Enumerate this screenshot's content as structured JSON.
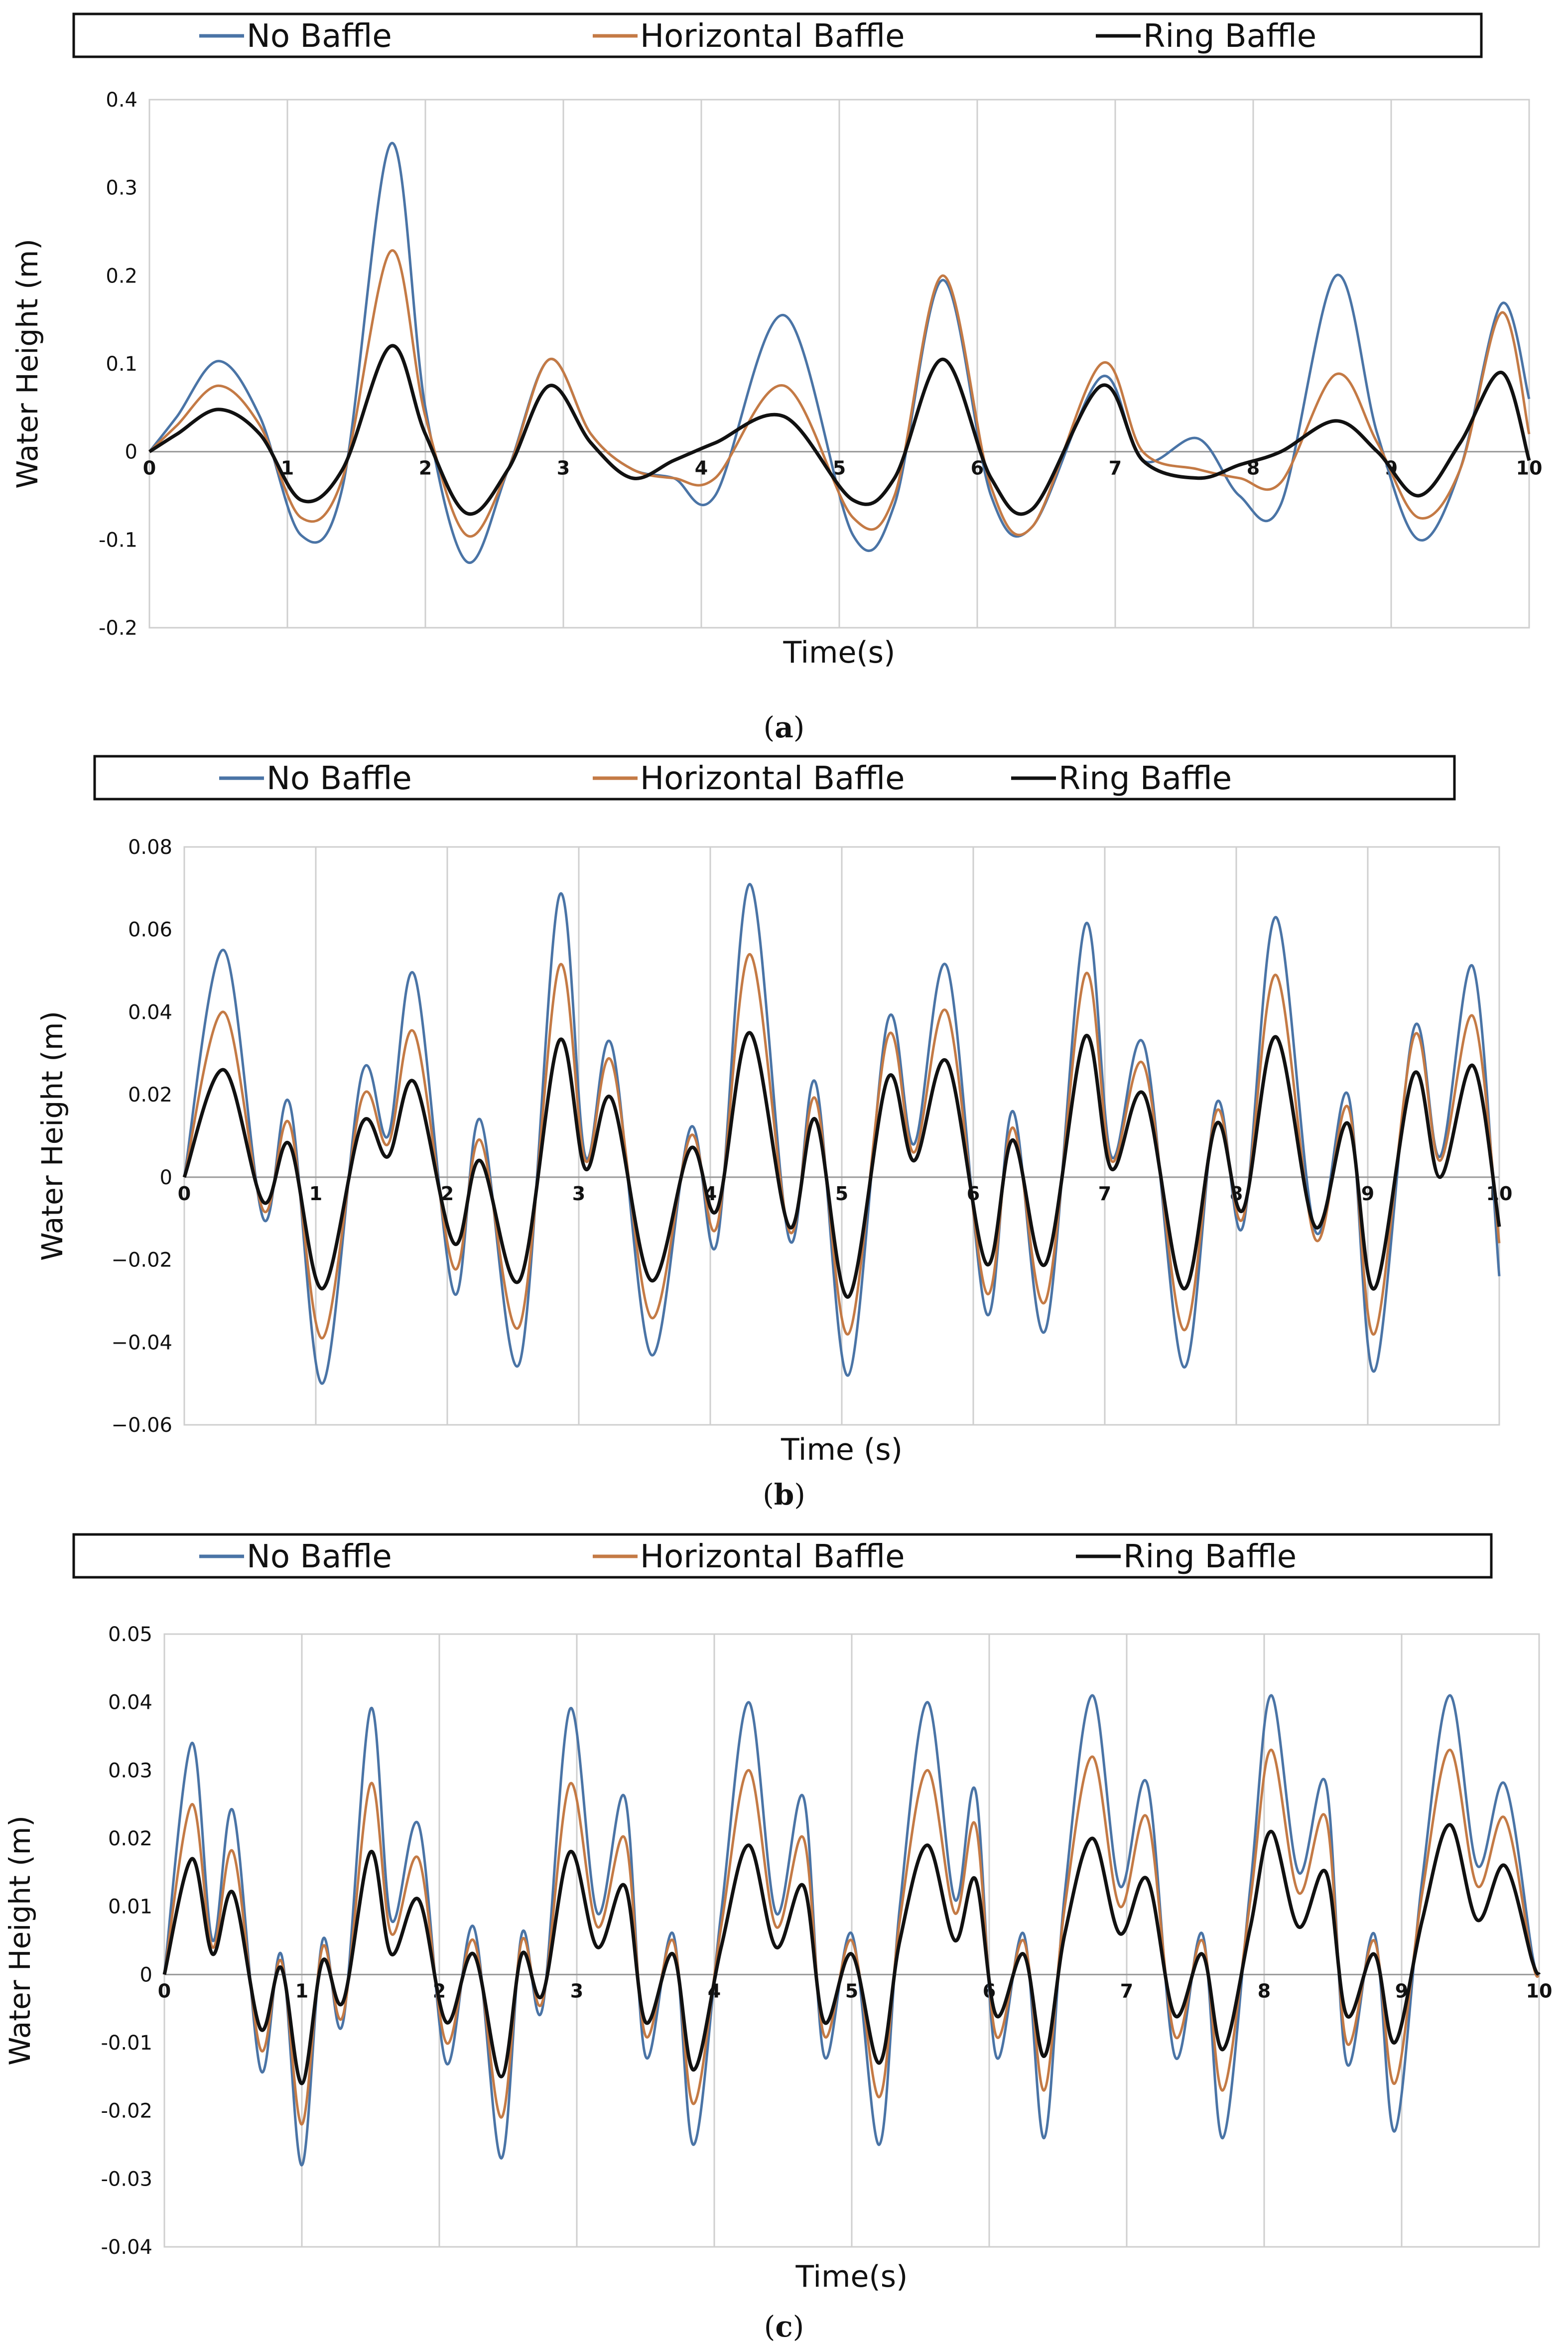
{
  "figure": {
    "captions": [
      "(a)",
      "(b)",
      "(c)"
    ],
    "caption_letters": [
      "a",
      "b",
      "c"
    ]
  },
  "colors": {
    "No Baffle": "#4a74a6",
    "Horizontal Baffle": "#c47a45",
    "Ring Baffle": "#111111",
    "grid": "#cfcfcf"
  },
  "chart_data": [
    {
      "type": "line",
      "caption": "(a)",
      "xlabel": "Time(s)",
      "ylabel": "Water Height (m)",
      "xlim": [
        0,
        10
      ],
      "ylim": [
        -0.2,
        0.4
      ],
      "xticks": [
        0,
        1,
        2,
        3,
        4,
        5,
        6,
        7,
        8,
        9,
        10
      ],
      "xtick_labels": [
        "0",
        "1",
        "2",
        "3",
        "4",
        "5",
        "6",
        "7",
        "8",
        "9",
        "10"
      ],
      "yticks": [
        -0.2,
        -0.1,
        0,
        0.1,
        0.2,
        0.3,
        0.4
      ],
      "ytick_labels": [
        "-0.2",
        "-0.1",
        "0",
        "0.1",
        "0.2",
        "0.3",
        "0.4"
      ],
      "grid": "vertical",
      "legend": "top",
      "series": [
        {
          "name": "No Baffle",
          "x": [
            0,
            0.2,
            0.5,
            0.8,
            1.1,
            1.4,
            1.75,
            2.0,
            2.3,
            2.6,
            2.9,
            3.2,
            3.5,
            3.8,
            4.1,
            4.6,
            5.1,
            5.4,
            5.75,
            6.1,
            6.4,
            6.9,
            7.2,
            7.6,
            7.9,
            8.2,
            8.6,
            8.9,
            9.2,
            9.5,
            9.8,
            10.0
          ],
          "y": [
            0,
            0.04,
            0.103,
            0.04,
            -0.095,
            -0.04,
            0.35,
            0.05,
            -0.125,
            -0.02,
            0.105,
            0.02,
            -0.02,
            -0.03,
            -0.05,
            0.155,
            -0.095,
            -0.06,
            0.195,
            -0.05,
            -0.085,
            0.085,
            -0.01,
            0.015,
            -0.05,
            -0.06,
            0.2,
            0.02,
            -0.1,
            -0.02,
            0.168,
            0.06
          ]
        },
        {
          "name": "Horizontal Baffle",
          "x": [
            0,
            0.2,
            0.5,
            0.8,
            1.1,
            1.4,
            1.75,
            2.0,
            2.3,
            2.6,
            2.9,
            3.2,
            3.5,
            3.8,
            4.1,
            4.6,
            5.1,
            5.4,
            5.75,
            6.1,
            6.4,
            6.9,
            7.2,
            7.6,
            7.9,
            8.2,
            8.6,
            8.9,
            9.2,
            9.5,
            9.8,
            10.0
          ],
          "y": [
            0,
            0.03,
            0.075,
            0.03,
            -0.075,
            -0.03,
            0.228,
            0.04,
            -0.095,
            -0.02,
            0.105,
            0.02,
            -0.02,
            -0.03,
            -0.03,
            0.075,
            -0.075,
            -0.05,
            0.2,
            -0.04,
            -0.085,
            0.1,
            0.0,
            -0.02,
            -0.03,
            -0.035,
            0.088,
            0.01,
            -0.075,
            -0.02,
            0.158,
            0.02
          ]
        },
        {
          "name": "Ring Baffle",
          "x": [
            0,
            0.2,
            0.5,
            0.8,
            1.1,
            1.4,
            1.75,
            2.0,
            2.3,
            2.6,
            2.9,
            3.2,
            3.5,
            3.8,
            4.1,
            4.6,
            5.1,
            5.4,
            5.75,
            6.1,
            6.4,
            6.9,
            7.2,
            7.6,
            7.9,
            8.2,
            8.6,
            8.9,
            9.2,
            9.5,
            9.8,
            10.0
          ],
          "y": [
            0,
            0.02,
            0.048,
            0.02,
            -0.055,
            -0.02,
            0.12,
            0.02,
            -0.07,
            -0.02,
            0.075,
            0.01,
            -0.03,
            -0.01,
            0.01,
            0.04,
            -0.055,
            -0.03,
            0.105,
            -0.03,
            -0.065,
            0.075,
            -0.01,
            -0.03,
            -0.015,
            0.0,
            0.035,
            0.0,
            -0.05,
            0.01,
            0.09,
            -0.01
          ]
        }
      ]
    },
    {
      "type": "line",
      "caption": "(b)",
      "xlabel": "Time (s)",
      "ylabel": "Water Height (m)",
      "xlim": [
        0,
        10
      ],
      "ylim": [
        -0.06,
        0.08
      ],
      "xticks": [
        0,
        1,
        2,
        3,
        4,
        5,
        6,
        7,
        8,
        9,
        10
      ],
      "xtick_labels": [
        "0",
        "1",
        "2",
        "3",
        "4",
        "5",
        "6",
        "7",
        "8",
        "9",
        "10"
      ],
      "yticks": [
        -0.06,
        -0.04,
        -0.02,
        0,
        0.02,
        0.04,
        0.06,
        0.08
      ],
      "ytick_labels": [
        "−0.06",
        "−0.04",
        "−0.02",
        "0",
        "0.02",
        "0.04",
        "0.06",
        "0.08"
      ],
      "grid": "vertical",
      "legend": "top",
      "series": [
        {
          "name": "No Baffle",
          "x": [
            0,
            0.3,
            0.6,
            0.8,
            1.05,
            1.35,
            1.55,
            1.75,
            2.05,
            2.25,
            2.55,
            2.85,
            3.05,
            3.25,
            3.55,
            3.85,
            4.05,
            4.3,
            4.6,
            4.8,
            5.05,
            5.35,
            5.55,
            5.8,
            6.1,
            6.3,
            6.55,
            6.85,
            7.05,
            7.3,
            7.6,
            7.85,
            8.05,
            8.3,
            8.6,
            8.85,
            9.05,
            9.35,
            9.55,
            9.8,
            10.0
          ],
          "y": [
            0,
            0.055,
            -0.01,
            0.018,
            -0.05,
            0.025,
            0.01,
            0.049,
            -0.028,
            0.014,
            -0.045,
            0.068,
            0.005,
            0.032,
            -0.043,
            0.012,
            -0.016,
            0.071,
            -0.015,
            0.023,
            -0.048,
            0.038,
            0.008,
            0.051,
            -0.033,
            0.016,
            -0.037,
            0.061,
            0.005,
            0.032,
            -0.046,
            0.018,
            -0.012,
            0.063,
            -0.013,
            0.02,
            -0.047,
            0.036,
            0.005,
            0.051,
            -0.024
          ]
        },
        {
          "name": "Horizontal Baffle",
          "x": [
            0,
            0.3,
            0.6,
            0.8,
            1.05,
            1.35,
            1.55,
            1.75,
            2.05,
            2.25,
            2.55,
            2.85,
            3.05,
            3.25,
            3.55,
            3.85,
            4.05,
            4.3,
            4.6,
            4.8,
            5.05,
            5.35,
            5.55,
            5.8,
            6.1,
            6.3,
            6.55,
            6.85,
            7.05,
            7.3,
            7.6,
            7.85,
            8.05,
            8.3,
            8.6,
            8.85,
            9.05,
            9.35,
            9.55,
            9.8,
            10.0
          ],
          "y": [
            0,
            0.04,
            -0.008,
            0.013,
            -0.039,
            0.019,
            0.008,
            0.035,
            -0.022,
            0.009,
            -0.036,
            0.051,
            0.004,
            0.028,
            -0.034,
            0.01,
            -0.012,
            0.054,
            -0.013,
            0.019,
            -0.038,
            0.034,
            0.006,
            0.04,
            -0.028,
            0.012,
            -0.03,
            0.049,
            0.004,
            0.027,
            -0.037,
            0.016,
            -0.01,
            0.049,
            -0.015,
            0.017,
            -0.038,
            0.034,
            0.004,
            0.039,
            -0.016
          ]
        },
        {
          "name": "Ring Baffle",
          "x": [
            0,
            0.3,
            0.6,
            0.8,
            1.05,
            1.35,
            1.55,
            1.75,
            2.05,
            2.25,
            2.55,
            2.85,
            3.05,
            3.25,
            3.55,
            3.85,
            4.05,
            4.3,
            4.6,
            4.8,
            5.05,
            5.35,
            5.55,
            5.8,
            6.1,
            6.3,
            6.55,
            6.85,
            7.05,
            7.3,
            7.6,
            7.85,
            8.05,
            8.3,
            8.6,
            8.85,
            9.05,
            9.35,
            9.55,
            9.8,
            10.0
          ],
          "y": [
            0,
            0.026,
            -0.006,
            0.008,
            -0.027,
            0.013,
            0.005,
            0.023,
            -0.016,
            0.004,
            -0.025,
            0.033,
            0.002,
            0.019,
            -0.025,
            0.007,
            -0.008,
            0.035,
            -0.012,
            0.014,
            -0.029,
            0.024,
            0.004,
            0.028,
            -0.021,
            0.009,
            -0.021,
            0.034,
            0.002,
            0.02,
            -0.027,
            0.013,
            -0.008,
            0.034,
            -0.012,
            0.013,
            -0.027,
            0.025,
            0.0,
            0.027,
            -0.012
          ]
        }
      ]
    },
    {
      "type": "line",
      "caption": "(c)",
      "xlabel": "Time(s)",
      "ylabel": "Water Height  (m)",
      "xlim": [
        0,
        10
      ],
      "ylim": [
        -0.04,
        0.05
      ],
      "xticks": [
        0,
        1,
        2,
        3,
        4,
        5,
        6,
        7,
        8,
        9,
        10
      ],
      "xtick_labels": [
        "0",
        "1",
        "2",
        "3",
        "4",
        "5",
        "6",
        "7",
        "8",
        "9",
        "10"
      ],
      "yticks": [
        -0.04,
        -0.03,
        -0.02,
        -0.01,
        0,
        0.01,
        0.02,
        0.03,
        0.04,
        0.05
      ],
      "ytick_labels": [
        "-0.04",
        "-0.03",
        "-0.02",
        "-0.01",
        "0",
        "0.01",
        "0.02",
        "0.03",
        "0.04",
        "0.05"
      ],
      "grid": "vertical",
      "legend": "top",
      "series": [
        {
          "name": "No Baffle",
          "x": [
            0,
            0.2,
            0.35,
            0.5,
            0.7,
            0.85,
            1.0,
            1.15,
            1.3,
            1.5,
            1.65,
            1.85,
            2.05,
            2.25,
            2.45,
            2.6,
            2.75,
            2.95,
            3.15,
            3.35,
            3.5,
            3.7,
            3.85,
            4.05,
            4.25,
            4.45,
            4.65,
            4.8,
            5.0,
            5.2,
            5.35,
            5.55,
            5.75,
            5.9,
            6.05,
            6.25,
            6.4,
            6.55,
            6.75,
            6.95,
            7.15,
            7.35,
            7.55,
            7.7,
            7.9,
            8.05,
            8.25,
            8.45,
            8.6,
            8.8,
            8.95,
            9.15,
            9.35,
            9.55,
            9.75,
            9.95,
            10.0
          ],
          "y": [
            0,
            0.034,
            0.005,
            0.024,
            -0.014,
            0.003,
            -0.028,
            0.005,
            -0.007,
            0.039,
            0.008,
            0.022,
            -0.013,
            0.007,
            -0.027,
            0.006,
            -0.005,
            0.039,
            0.009,
            0.026,
            -0.012,
            0.006,
            -0.025,
            0.009,
            0.04,
            0.009,
            0.026,
            -0.012,
            0.006,
            -0.025,
            0.01,
            0.04,
            0.011,
            0.027,
            -0.012,
            0.006,
            -0.024,
            0.012,
            0.041,
            0.013,
            0.028,
            -0.012,
            0.006,
            -0.024,
            0.013,
            0.041,
            0.015,
            0.028,
            -0.013,
            0.006,
            -0.023,
            0.014,
            0.041,
            0.016,
            0.028,
            0.003,
            0.0
          ]
        },
        {
          "name": "Horizontal Baffle",
          "x": [
            0,
            0.2,
            0.35,
            0.5,
            0.7,
            0.85,
            1.0,
            1.15,
            1.3,
            1.5,
            1.65,
            1.85,
            2.05,
            2.25,
            2.45,
            2.6,
            2.75,
            2.95,
            3.15,
            3.35,
            3.5,
            3.7,
            3.85,
            4.05,
            4.25,
            4.45,
            4.65,
            4.8,
            5.0,
            5.2,
            5.35,
            5.55,
            5.75,
            5.9,
            6.05,
            6.25,
            6.4,
            6.55,
            6.75,
            6.95,
            7.15,
            7.35,
            7.55,
            7.7,
            7.9,
            8.05,
            8.25,
            8.45,
            8.6,
            8.8,
            8.95,
            9.15,
            9.35,
            9.55,
            9.75,
            9.95,
            10.0
          ],
          "y": [
            0,
            0.025,
            0.004,
            0.018,
            -0.011,
            0.002,
            -0.022,
            0.004,
            -0.006,
            0.028,
            0.006,
            0.017,
            -0.01,
            0.005,
            -0.021,
            0.005,
            -0.004,
            0.028,
            0.007,
            0.02,
            -0.009,
            0.005,
            -0.019,
            0.007,
            0.03,
            0.007,
            0.02,
            -0.009,
            0.005,
            -0.018,
            0.008,
            0.03,
            0.009,
            0.022,
            -0.009,
            0.005,
            -0.017,
            0.01,
            0.032,
            0.01,
            0.023,
            -0.009,
            0.005,
            -0.017,
            0.011,
            0.033,
            0.012,
            0.023,
            -0.01,
            0.005,
            -0.016,
            0.012,
            0.033,
            0.013,
            0.023,
            0.002,
            0.0
          ]
        },
        {
          "name": "Ring Baffle",
          "x": [
            0,
            0.2,
            0.35,
            0.5,
            0.7,
            0.85,
            1.0,
            1.15,
            1.3,
            1.5,
            1.65,
            1.85,
            2.05,
            2.25,
            2.45,
            2.6,
            2.75,
            2.95,
            3.15,
            3.35,
            3.5,
            3.7,
            3.85,
            4.05,
            4.25,
            4.45,
            4.65,
            4.8,
            5.0,
            5.2,
            5.35,
            5.55,
            5.75,
            5.9,
            6.05,
            6.25,
            6.4,
            6.55,
            6.75,
            6.95,
            7.15,
            7.35,
            7.55,
            7.7,
            7.9,
            8.05,
            8.25,
            8.45,
            8.6,
            8.8,
            8.95,
            9.15,
            9.35,
            9.55,
            9.75,
            9.95,
            10.0
          ],
          "y": [
            0,
            0.017,
            0.003,
            0.012,
            -0.008,
            0.001,
            -0.016,
            0.002,
            -0.004,
            0.018,
            0.003,
            0.011,
            -0.007,
            0.003,
            -0.015,
            0.003,
            -0.003,
            0.018,
            0.004,
            0.013,
            -0.007,
            0.003,
            -0.014,
            0.004,
            0.019,
            0.004,
            0.013,
            -0.007,
            0.003,
            -0.013,
            0.005,
            0.019,
            0.005,
            0.014,
            -0.006,
            0.003,
            -0.012,
            0.006,
            0.02,
            0.006,
            0.014,
            -0.006,
            0.003,
            -0.011,
            0.007,
            0.021,
            0.007,
            0.015,
            -0.006,
            0.003,
            -0.01,
            0.008,
            0.022,
            0.008,
            0.016,
            0.002,
            0.0
          ]
        }
      ]
    }
  ]
}
